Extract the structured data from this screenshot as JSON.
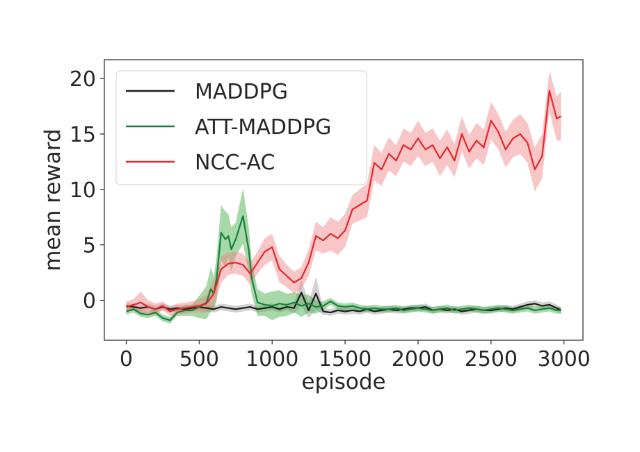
{
  "chart_data": {
    "type": "line",
    "title": "",
    "xlabel": "episode",
    "ylabel": "mean reward",
    "xlim": [
      -150,
      3130
    ],
    "ylim": [
      -3.6,
      21.7
    ],
    "xticks": [
      0,
      500,
      1000,
      1500,
      2000,
      2500,
      3000
    ],
    "yticks": [
      0,
      5,
      10,
      15,
      20
    ],
    "legend_position": "upper-left",
    "grid": false,
    "series": [
      {
        "name": "MADDPG",
        "color": "#1a1a1a",
        "band_color": "#999999",
        "x": [
          0,
          50,
          100,
          150,
          200,
          250,
          300,
          350,
          400,
          450,
          500,
          550,
          600,
          650,
          700,
          750,
          800,
          850,
          900,
          950,
          1000,
          1050,
          1100,
          1150,
          1200,
          1250,
          1300,
          1350,
          1400,
          1450,
          1500,
          1550,
          1600,
          1650,
          1700,
          1750,
          1800,
          1850,
          1900,
          1950,
          2000,
          2050,
          2100,
          2150,
          2200,
          2250,
          2300,
          2350,
          2400,
          2450,
          2500,
          2550,
          2600,
          2650,
          2700,
          2750,
          2800,
          2850,
          2900,
          2950,
          2980
        ],
        "y": [
          -0.5,
          -0.6,
          -0.7,
          -0.6,
          -0.8,
          -0.6,
          -0.8,
          -0.7,
          -0.8,
          -0.7,
          -0.6,
          -0.7,
          -0.8,
          -0.6,
          -0.7,
          -0.8,
          -0.7,
          -0.6,
          -0.8,
          -0.7,
          -0.6,
          -0.8,
          -0.6,
          -0.7,
          0.7,
          -0.9,
          0.6,
          -1.0,
          -1.1,
          -0.9,
          -1.0,
          -0.9,
          -1.0,
          -0.8,
          -1.0,
          -0.9,
          -0.8,
          -0.9,
          -0.8,
          -0.7,
          -0.7,
          -0.6,
          -0.9,
          -0.8,
          -0.9,
          -0.8,
          -1.0,
          -0.9,
          -0.8,
          -0.9,
          -0.9,
          -0.8,
          -0.7,
          -0.8,
          -0.6,
          -0.4,
          -0.3,
          -0.5,
          -0.4,
          -0.7,
          -0.9
        ],
        "band": [
          0.3,
          0.3,
          0.3,
          0.3,
          0.3,
          0.3,
          0.3,
          0.3,
          0.3,
          0.3,
          0.3,
          0.3,
          0.3,
          0.3,
          0.3,
          0.3,
          0.3,
          0.3,
          0.3,
          0.3,
          0.3,
          0.3,
          0.3,
          0.5,
          1.2,
          0.7,
          1.5,
          0.3,
          0.3,
          0.3,
          0.3,
          0.3,
          0.3,
          0.3,
          0.3,
          0.3,
          0.3,
          0.3,
          0.3,
          0.3,
          0.3,
          0.3,
          0.3,
          0.3,
          0.3,
          0.3,
          0.3,
          0.3,
          0.3,
          0.3,
          0.3,
          0.3,
          0.3,
          0.3,
          0.3,
          0.3,
          0.3,
          0.3,
          0.3,
          0.3,
          0.3
        ]
      },
      {
        "name": "ATT-MADDPG",
        "color": "#14803c",
        "band_color": "#3ca83c",
        "x": [
          0,
          50,
          100,
          150,
          200,
          250,
          300,
          350,
          400,
          450,
          500,
          550,
          580,
          600,
          620,
          650,
          680,
          700,
          720,
          750,
          800,
          840,
          860,
          900,
          950,
          1000,
          1050,
          1100,
          1150,
          1200,
          1250,
          1300,
          1350,
          1400,
          1450,
          1500,
          1550,
          1600,
          1650,
          1700,
          1750,
          1800,
          1850,
          1900,
          1950,
          2000,
          2050,
          2100,
          2150,
          2200,
          2250,
          2300,
          2350,
          2400,
          2450,
          2500,
          2550,
          2600,
          2650,
          2700,
          2750,
          2800,
          2850,
          2900,
          2950,
          2980
        ],
        "y": [
          -1.0,
          -0.8,
          -1.2,
          -1.3,
          -1.1,
          -1.6,
          -1.8,
          -1.1,
          -0.9,
          -0.9,
          -0.6,
          -0.2,
          1.0,
          0.6,
          2.0,
          6.1,
          5.5,
          5.8,
          4.6,
          5.5,
          7.6,
          4.5,
          2.0,
          -0.2,
          -0.4,
          -0.5,
          -0.3,
          -0.4,
          -0.2,
          -0.5,
          -0.3,
          -0.6,
          -0.5,
          -0.1,
          -0.5,
          -0.6,
          -0.5,
          -0.7,
          -0.8,
          -0.7,
          -0.8,
          -0.8,
          -0.7,
          -0.9,
          -0.8,
          -0.7,
          -0.8,
          -0.9,
          -0.8,
          -0.7,
          -0.9,
          -0.8,
          -0.7,
          -0.8,
          -0.9,
          -0.8,
          -0.7,
          -0.8,
          -0.9,
          -0.8,
          -0.7,
          -0.9,
          -0.8,
          -0.7,
          -0.9,
          -0.9
        ],
        "band": [
          0.3,
          0.3,
          0.3,
          0.3,
          0.3,
          0.3,
          0.3,
          0.3,
          0.5,
          0.5,
          1.0,
          1.5,
          2.0,
          1.5,
          2.0,
          2.5,
          2.5,
          2.0,
          2.0,
          1.5,
          2.5,
          2.0,
          1.5,
          1.2,
          1.0,
          1.3,
          1.2,
          1.0,
          0.9,
          1.0,
          0.8,
          0.6,
          0.4,
          0.3,
          0.3,
          0.3,
          0.3,
          0.3,
          0.3,
          0.3,
          0.3,
          0.3,
          0.3,
          0.3,
          0.3,
          0.3,
          0.3,
          0.3,
          0.3,
          0.3,
          0.3,
          0.3,
          0.3,
          0.3,
          0.3,
          0.3,
          0.3,
          0.3,
          0.3,
          0.3,
          0.3,
          0.3,
          0.3,
          0.3,
          0.3,
          0.3
        ]
      },
      {
        "name": "NCC-AC",
        "color": "#e8252a",
        "band_color": "#f08080",
        "x": [
          0,
          50,
          100,
          150,
          200,
          250,
          300,
          350,
          400,
          450,
          500,
          550,
          600,
          650,
          700,
          750,
          800,
          850,
          900,
          950,
          1000,
          1050,
          1100,
          1150,
          1200,
          1250,
          1300,
          1350,
          1400,
          1450,
          1500,
          1550,
          1600,
          1650,
          1700,
          1750,
          1800,
          1850,
          1900,
          1950,
          2000,
          2050,
          2100,
          2150,
          2200,
          2250,
          2300,
          2350,
          2400,
          2450,
          2500,
          2550,
          2600,
          2650,
          2700,
          2750,
          2800,
          2850,
          2900,
          2950,
          2980
        ],
        "y": [
          -0.6,
          -0.4,
          -0.2,
          -0.6,
          -0.8,
          -0.5,
          -1.0,
          -0.8,
          -0.7,
          -0.6,
          -0.5,
          -0.3,
          0.6,
          2.8,
          3.3,
          3.4,
          3.2,
          2.4,
          3.4,
          4.4,
          4.8,
          2.8,
          2.2,
          1.6,
          2.0,
          3.4,
          5.8,
          5.4,
          6.0,
          5.6,
          6.3,
          8.2,
          8.6,
          9.0,
          12.4,
          11.8,
          13.2,
          12.6,
          14.0,
          13.6,
          14.6,
          13.6,
          14.0,
          12.8,
          13.8,
          12.6,
          15.0,
          13.4,
          14.4,
          13.8,
          16.2,
          15.2,
          13.6,
          14.6,
          15.0,
          14.2,
          11.8,
          13.0,
          18.9,
          16.4,
          16.6
        ],
        "band": [
          0.5,
          0.5,
          1.0,
          0.6,
          0.5,
          0.4,
          0.4,
          0.5,
          0.5,
          0.5,
          0.6,
          0.8,
          1.2,
          1.2,
          1.0,
          1.0,
          1.0,
          1.0,
          1.0,
          1.2,
          1.2,
          1.2,
          1.0,
          1.0,
          1.0,
          1.2,
          1.3,
          1.2,
          1.5,
          1.5,
          1.5,
          1.3,
          1.4,
          1.5,
          1.6,
          1.5,
          1.5,
          1.4,
          1.5,
          1.5,
          1.6,
          1.5,
          1.5,
          1.6,
          1.6,
          1.5,
          1.6,
          1.5,
          1.6,
          1.6,
          1.7,
          1.6,
          1.6,
          1.7,
          1.8,
          1.8,
          2.0,
          2.0,
          1.8,
          2.0,
          2.2
        ]
      }
    ]
  }
}
